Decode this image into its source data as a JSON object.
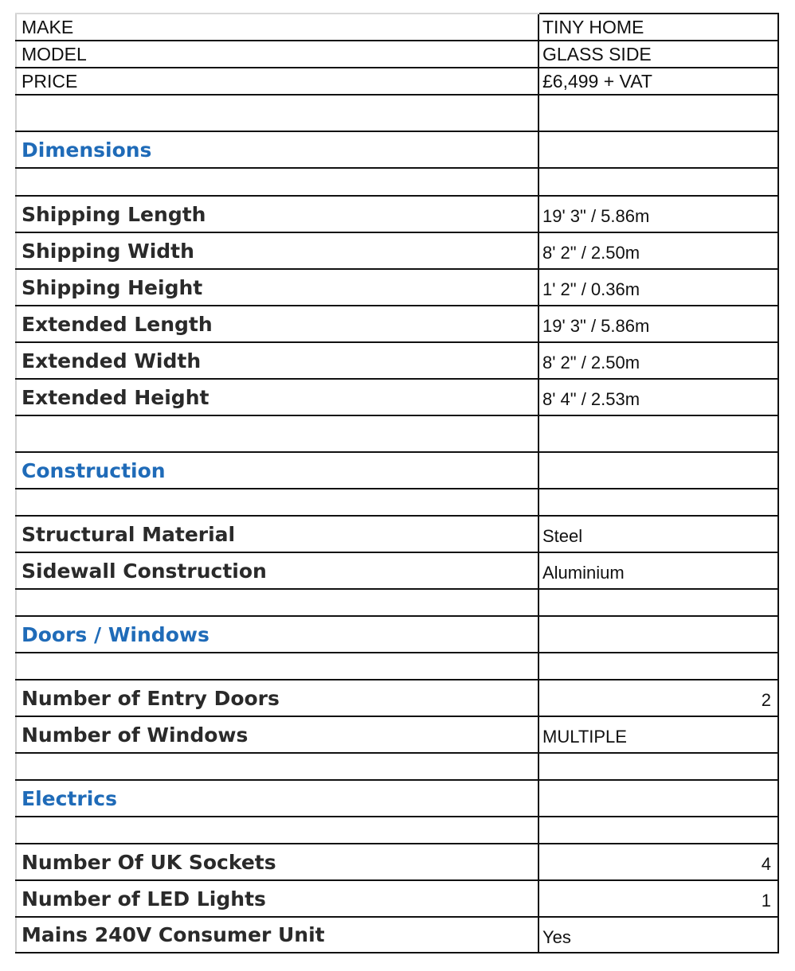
{
  "rows": [
    {
      "kind": "header",
      "label": "MAKE",
      "value": "TINY HOME"
    },
    {
      "kind": "header",
      "label": "MODEL",
      "value": "GLASS SIDE"
    },
    {
      "kind": "header",
      "label": "PRICE",
      "value": "£6,499 + VAT"
    },
    {
      "kind": "blank",
      "label": "",
      "value": ""
    },
    {
      "kind": "section",
      "label": "Dimensions",
      "value": ""
    },
    {
      "kind": "blank",
      "label": "",
      "value": ""
    },
    {
      "kind": "spec",
      "label": "Shipping Length",
      "value": "19' 3\" / 5.86m"
    },
    {
      "kind": "spec",
      "label": "Shipping Width",
      "value": "8' 2\" / 2.50m"
    },
    {
      "kind": "spec",
      "label": "Shipping Height",
      "value": "1' 2\" / 0.36m"
    },
    {
      "kind": "spec",
      "label": "Extended Length",
      "value": "19' 3\" / 5.86m"
    },
    {
      "kind": "spec",
      "label": "Extended Width",
      "value": "8' 2\" / 2.50m"
    },
    {
      "kind": "spec",
      "label": "Extended Height",
      "value": "8' 4\" / 2.53m"
    },
    {
      "kind": "blank",
      "label": "",
      "value": ""
    },
    {
      "kind": "section",
      "label": "Construction",
      "value": ""
    },
    {
      "kind": "blank",
      "label": "",
      "value": ""
    },
    {
      "kind": "spec",
      "label": "Structural Material",
      "value": "Steel"
    },
    {
      "kind": "spec",
      "label": "Sidewall Construction",
      "value": "Aluminium"
    },
    {
      "kind": "blank",
      "label": "",
      "value": ""
    },
    {
      "kind": "section",
      "label": "Doors / Windows",
      "value": ""
    },
    {
      "kind": "blank",
      "label": "",
      "value": ""
    },
    {
      "kind": "spec",
      "label": "Number of Entry Doors",
      "value": "2",
      "align": "right"
    },
    {
      "kind": "spec",
      "label": "Number of Windows",
      "value": "MULTIPLE"
    },
    {
      "kind": "blank",
      "label": "",
      "value": ""
    },
    {
      "kind": "section",
      "label": "Electrics",
      "value": ""
    },
    {
      "kind": "blank",
      "label": "",
      "value": ""
    },
    {
      "kind": "spec",
      "label": "Number Of UK Sockets",
      "value": "4",
      "align": "right"
    },
    {
      "kind": "spec",
      "label": "Number of LED Lights",
      "value": "1",
      "align": "right"
    },
    {
      "kind": "spec",
      "label": "Mains 240V Consumer Unit",
      "value": "Yes"
    }
  ],
  "colors": {
    "section_heading": "#1f6bb8",
    "border": "#111111"
  }
}
